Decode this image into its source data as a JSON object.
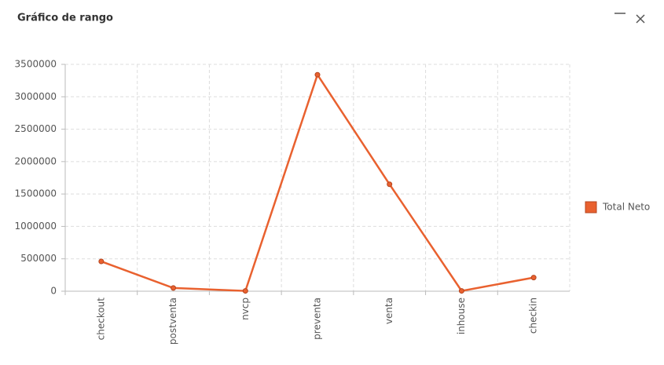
{
  "chart_data": {
    "type": "line",
    "title": "Gráfico de rango",
    "categories": [
      "checkout",
      "postventa",
      "nvcp",
      "preventa",
      "venta",
      "inhouse",
      "checkin"
    ],
    "series": [
      {
        "name": "Total Neto",
        "color": "#e9612f",
        "values": [
          460000,
          50000,
          5000,
          3340000,
          1650000,
          5000,
          210000
        ]
      }
    ],
    "ylim": [
      0,
      3500000
    ],
    "yticks": [
      0,
      500000,
      1000000,
      1500000,
      2000000,
      2500000,
      3000000,
      3500000
    ],
    "grid": true,
    "legend": "right"
  }
}
